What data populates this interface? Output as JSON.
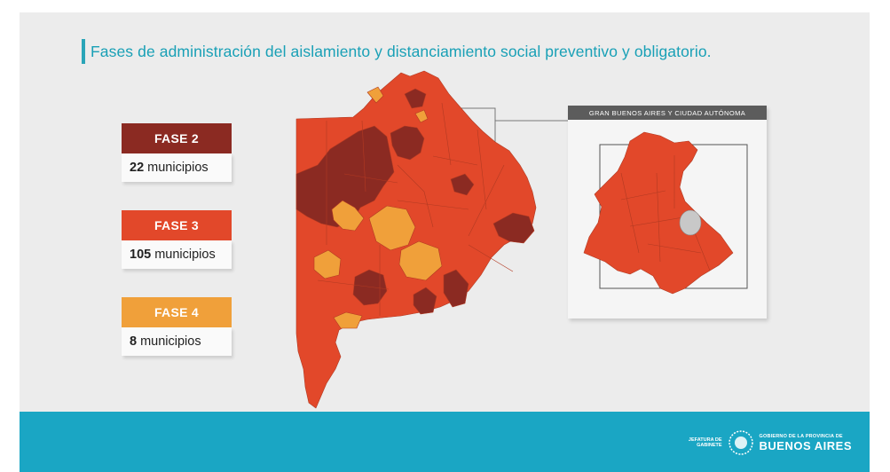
{
  "title": "Fases de administración del aislamiento y distanciamiento social preventivo y obligatorio.",
  "legend": [
    {
      "label": "FASE 2",
      "count": "22",
      "unit": "municipios",
      "color": "#8b2a22"
    },
    {
      "label": "FASE 3",
      "count": "105",
      "unit": "municipios",
      "color": "#e2482a"
    },
    {
      "label": "FASE 4",
      "count": "8",
      "unit": "municipios",
      "color": "#f0a03a"
    }
  ],
  "inset": {
    "title": "GRAN BUENOS AIRES Y CIUDAD AUTÓNOMA"
  },
  "footer": {
    "jefatura": "JEFATURA DE GABINETE",
    "gov_small": "GOBIERNO DE LA PROVINCIA DE",
    "gov_big": "BUENOS AIRES"
  },
  "colors": {
    "accent": "#19a0b6",
    "footer": "#1aa6c4",
    "fase2": "#8b2a22",
    "fase3": "#e2482a",
    "fase4": "#f0a03a"
  }
}
